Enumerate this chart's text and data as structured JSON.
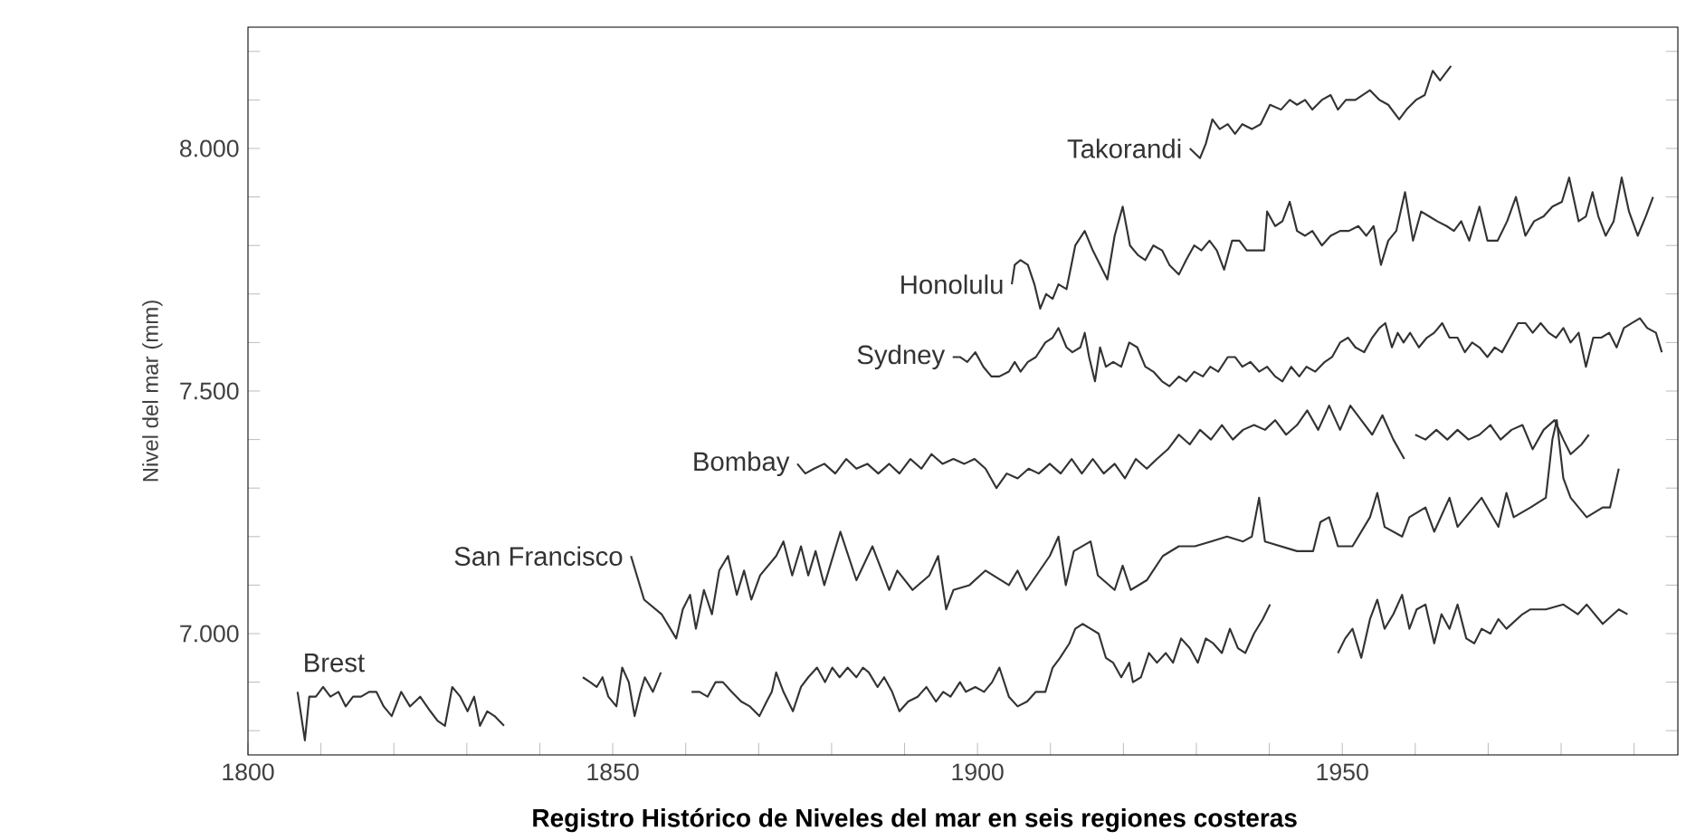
{
  "chart_data": {
    "type": "line",
    "title": "Registro Histórico de Niveles del mar en seis regiones costeras",
    "ylabel": "Nivel del mar (mm)",
    "xlim": [
      1800,
      1996
    ],
    "ylim": [
      6750,
      8250
    ],
    "xticks": [
      1800,
      {
        "value": 1810,
        "label": null
      },
      {
        "value": 1820,
        "label": null
      },
      {
        "value": 1830,
        "label": null
      },
      {
        "value": 1840,
        "label": null
      },
      1850,
      {
        "value": 1860,
        "label": null
      },
      {
        "value": 1870,
        "label": null
      },
      {
        "value": 1880,
        "label": null
      },
      {
        "value": 1890,
        "label": null
      },
      1900,
      {
        "value": 1910,
        "label": null
      },
      {
        "value": 1920,
        "label": null
      },
      {
        "value": 1930,
        "label": null
      },
      {
        "value": 1940,
        "label": null
      },
      1950,
      {
        "value": 1960,
        "label": null
      },
      {
        "value": 1970,
        "label": null
      },
      {
        "value": 1980,
        "label": null
      },
      {
        "value": 1990,
        "label": null
      }
    ],
    "yticks": [
      {
        "value": 6800,
        "label": null
      },
      {
        "value": 6900,
        "label": null
      },
      {
        "value": 7000,
        "label": "7.000"
      },
      {
        "value": 7100,
        "label": null
      },
      {
        "value": 7200,
        "label": null
      },
      {
        "value": 7300,
        "label": null
      },
      {
        "value": 7400,
        "label": null
      },
      {
        "value": 7500,
        "label": "7.500"
      },
      {
        "value": 7600,
        "label": null
      },
      {
        "value": 7700,
        "label": null
      },
      {
        "value": 7800,
        "label": null
      },
      {
        "value": 7900,
        "label": null
      },
      {
        "value": 8000,
        "label": "8.000"
      },
      {
        "value": 8100,
        "label": null
      },
      {
        "value": 8200,
        "label": null
      }
    ],
    "series": [
      {
        "name": "Takorandi",
        "color": "#333333",
        "x": [
          1929.1,
          1930.5,
          1931.3,
          1932.2,
          1933.2,
          1934.3,
          1935.3,
          1936.3,
          1937.6,
          1938.8,
          1940.1,
          1941.6,
          1942.8,
          1943.8,
          1944.9,
          1945.9,
          1947.2,
          1948.4,
          1949.4,
          1950.5,
          1951.8,
          1952.8,
          1953.8,
          1955.1,
          1956.3,
          1957.8,
          1958.8,
          1960.1,
          1961.3,
          1962.4,
          1963.4,
          1964.9
        ],
        "values": [
          8000,
          7980,
          8010,
          8060,
          8040,
          8050,
          8030,
          8050,
          8040,
          8050,
          8090,
          8080,
          8100,
          8090,
          8100,
          8080,
          8100,
          8110,
          8080,
          8100,
          8100,
          8110,
          8120,
          8100,
          8090,
          8060,
          8080,
          8100,
          8110,
          8160,
          8140,
          8170
        ]
      },
      {
        "name": "Honolulu",
        "color": "#333333",
        "x": [
          1904.7,
          1905.1,
          1905.9,
          1906.9,
          1907.8,
          1908.6,
          1909.4,
          1910.3,
          1911.1,
          1912.2,
          1913.4,
          1914.7,
          1915.8,
          1916.8,
          1917.8,
          1918.8,
          1919.9,
          1920.9,
          1922.0,
          1923.0,
          1924.1,
          1925.3,
          1926.3,
          1927.6,
          1928.6,
          1929.7,
          1930.7,
          1931.8,
          1932.8,
          1933.8,
          1934.9,
          1935.9,
          1936.9,
          1938.0,
          1939.3,
          1939.7,
          1940.8,
          1941.8,
          1942.8,
          1943.8,
          1944.9,
          1945.9,
          1947.2,
          1948.4,
          1949.7,
          1950.9,
          1952.2,
          1953.3,
          1954.3,
          1955.3,
          1956.3,
          1957.4,
          1958.6,
          1959.7,
          1960.8,
          1961.9,
          1963.0,
          1964.3,
          1965.3,
          1966.3,
          1967.4,
          1968.8,
          1969.9,
          1971.3,
          1972.6,
          1973.8,
          1975.1,
          1976.3,
          1977.6,
          1978.8,
          1980.1,
          1981.1,
          1982.4,
          1983.4,
          1984.3,
          1985.1,
          1986.1,
          1987.2,
          1988.3,
          1989.3,
          1990.5,
          1991.6,
          1992.6
        ],
        "values": [
          7720,
          7760,
          7770,
          7760,
          7720,
          7670,
          7700,
          7690,
          7720,
          7710,
          7800,
          7830,
          7790,
          7760,
          7730,
          7820,
          7880,
          7800,
          7780,
          7770,
          7800,
          7790,
          7760,
          7740,
          7770,
          7800,
          7790,
          7810,
          7790,
          7750,
          7810,
          7810,
          7790,
          7790,
          7790,
          7870,
          7840,
          7850,
          7890,
          7830,
          7820,
          7830,
          7800,
          7820,
          7830,
          7830,
          7840,
          7820,
          7840,
          7760,
          7810,
          7830,
          7910,
          7810,
          7870,
          7860,
          7850,
          7840,
          7830,
          7850,
          7810,
          7880,
          7810,
          7810,
          7850,
          7900,
          7820,
          7850,
          7860,
          7880,
          7890,
          7940,
          7850,
          7860,
          7910,
          7860,
          7820,
          7850,
          7940,
          7870,
          7820,
          7860,
          7900
        ]
      },
      {
        "name": "Sydney",
        "color": "#333333",
        "x": [
          1896.6,
          1897.6,
          1898.6,
          1899.7,
          1900.8,
          1901.9,
          1903.0,
          1904.3,
          1905.1,
          1905.9,
          1906.9,
          1908.0,
          1909.3,
          1910.3,
          1911.1,
          1912.2,
          1913.0,
          1914.1,
          1914.7,
          1915.3,
          1916.1,
          1916.8,
          1917.6,
          1918.6,
          1919.7,
          1920.8,
          1921.9,
          1923.0,
          1924.1,
          1925.3,
          1926.3,
          1927.6,
          1928.6,
          1929.7,
          1930.9,
          1931.9,
          1933.0,
          1934.3,
          1935.3,
          1936.3,
          1937.4,
          1938.6,
          1939.7,
          1940.8,
          1941.8,
          1943.0,
          1944.1,
          1945.1,
          1946.3,
          1947.6,
          1948.6,
          1949.7,
          1950.8,
          1951.8,
          1953.0,
          1954.1,
          1955.1,
          1955.9,
          1956.8,
          1957.6,
          1958.4,
          1959.3,
          1960.5,
          1961.6,
          1962.6,
          1963.7,
          1964.7,
          1965.8,
          1966.8,
          1967.8,
          1968.8,
          1969.9,
          1970.9,
          1971.9,
          1973.0,
          1974.1,
          1975.1,
          1976.1,
          1977.2,
          1978.3,
          1979.3,
          1980.3,
          1981.3,
          1982.4,
          1983.4,
          1984.4,
          1985.5,
          1986.6,
          1987.6,
          1988.6,
          1989.7,
          1990.8,
          1991.8,
          1993.0,
          1993.8
        ],
        "values": [
          7570,
          7570,
          7560,
          7580,
          7550,
          7530,
          7530,
          7540,
          7560,
          7540,
          7560,
          7570,
          7600,
          7610,
          7630,
          7590,
          7580,
          7590,
          7620,
          7570,
          7520,
          7590,
          7550,
          7560,
          7550,
          7600,
          7590,
          7550,
          7540,
          7520,
          7510,
          7530,
          7520,
          7540,
          7530,
          7550,
          7540,
          7570,
          7570,
          7550,
          7560,
          7540,
          7550,
          7530,
          7520,
          7550,
          7530,
          7550,
          7540,
          7560,
          7570,
          7600,
          7610,
          7590,
          7580,
          7610,
          7630,
          7640,
          7590,
          7620,
          7600,
          7620,
          7590,
          7610,
          7620,
          7640,
          7610,
          7610,
          7580,
          7600,
          7590,
          7570,
          7590,
          7580,
          7610,
          7640,
          7640,
          7620,
          7640,
          7620,
          7610,
          7630,
          7600,
          7620,
          7550,
          7610,
          7610,
          7620,
          7590,
          7630,
          7640,
          7650,
          7630,
          7620,
          7580
        ]
      },
      {
        "name": "Bombay",
        "color": "#333333",
        "x": [
          1875.3,
          1876.4,
          1877.6,
          1879.0,
          1880.5,
          1882.0,
          1883.4,
          1884.9,
          1886.4,
          1887.9,
          1889.3,
          1890.8,
          1892.3,
          1893.7,
          1895.2,
          1896.7,
          1898.2,
          1899.6,
          1901.1,
          1902.6,
          1904.0,
          1905.5,
          1907.0,
          1908.4,
          1909.9,
          1911.4,
          1912.9,
          1914.3,
          1915.8,
          1917.3,
          1918.8,
          1920.2,
          1921.7,
          1923.2,
          1924.6,
          1926.1,
          1927.6,
          1929.1,
          1930.5,
          1932.0,
          1933.5,
          1935.0,
          1936.4,
          1937.9,
          1939.4,
          1940.8,
          1942.3,
          1943.8,
          1945.2,
          1946.7,
          1948.2,
          1949.7,
          1951.1,
          1952.6,
          1954.1,
          1955.5,
          1957.0,
          1958.5,
          null,
          1960.0,
          1961.4,
          1962.9,
          1964.4,
          1965.8,
          1967.3,
          1968.8,
          1970.3,
          1971.7,
          1973.2,
          1974.7,
          1976.1,
          1977.6,
          1979.1,
          1980.3,
          1981.3,
          1982.8,
          1983.8
        ],
        "values": [
          7350,
          7330,
          7340,
          7350,
          7330,
          7360,
          7340,
          7350,
          7330,
          7350,
          7330,
          7360,
          7340,
          7370,
          7350,
          7360,
          7350,
          7360,
          7340,
          7300,
          7330,
          7320,
          7340,
          7330,
          7350,
          7330,
          7360,
          7330,
          7360,
          7330,
          7350,
          7320,
          7360,
          7340,
          7360,
          7380,
          7410,
          7390,
          7420,
          7400,
          7430,
          7400,
          7420,
          7430,
          7420,
          7440,
          7410,
          7430,
          7460,
          7420,
          7470,
          7420,
          7470,
          7440,
          7410,
          7450,
          7400,
          7360,
          null,
          7410,
          7400,
          7420,
          7400,
          7420,
          7400,
          7410,
          7430,
          7400,
          7420,
          7430,
          7380,
          7420,
          7440,
          7400,
          7370,
          7390,
          7410
        ]
      },
      {
        "name": "San Francisco",
        "color": "#333333",
        "x": [
          1852.5,
          1854.3,
          1856.7,
          1858.7,
          1859.6,
          1860.6,
          1861.4,
          1862.5,
          1863.6,
          1864.6,
          1865.8,
          1867.0,
          1868.0,
          1869.0,
          1870.2,
          1872.4,
          1873.4,
          1874.6,
          1875.8,
          1876.8,
          1877.8,
          1879.0,
          1881.2,
          1883.4,
          1885.6,
          1887.9,
          1889.0,
          1891.1,
          1893.4,
          1894.6,
          1895.7,
          1896.7,
          1898.9,
          1901.1,
          1904.3,
          1905.5,
          1906.7,
          1909.9,
          1911.1,
          1912.1,
          1913.2,
          1915.5,
          1916.5,
          1918.8,
          1919.9,
          1921.0,
          1923.2,
          1925.4,
          1927.6,
          1929.8,
          1932.0,
          1934.2,
          1936.4,
          1937.6,
          1938.6,
          1939.4,
          1941.6,
          1943.8,
          1946.0,
          1947.0,
          1948.2,
          1949.4,
          1951.4,
          1953.8,
          1954.8,
          1955.8,
          1958.2,
          1959.2,
          1961.4,
          1962.6,
          1964.7,
          1965.8,
          1969.1,
          1971.4,
          1972.5,
          1973.5,
          1975.8,
          1977.9,
          1978.8,
          1979.4,
          1980.3,
          1981.3,
          1983.5,
          1985.7,
          1986.7,
          1987.9
        ],
        "values": [
          7160,
          7070,
          7040,
          6990,
          7050,
          7080,
          7010,
          7090,
          7040,
          7130,
          7160,
          7080,
          7130,
          7070,
          7120,
          7160,
          7190,
          7120,
          7180,
          7120,
          7170,
          7100,
          7210,
          7110,
          7180,
          7090,
          7130,
          7090,
          7120,
          7160,
          7050,
          7090,
          7100,
          7130,
          7100,
          7130,
          7090,
          7160,
          7200,
          7100,
          7170,
          7190,
          7120,
          7090,
          7140,
          7090,
          7110,
          7160,
          7180,
          7180,
          7190,
          7200,
          7190,
          7200,
          7280,
          7190,
          7180,
          7170,
          7170,
          7230,
          7240,
          7180,
          7180,
          7240,
          7290,
          7220,
          7200,
          7240,
          7260,
          7210,
          7280,
          7220,
          7280,
          7220,
          7290,
          7240,
          7260,
          7280,
          7400,
          7440,
          7320,
          7280,
          7240,
          7260,
          7260,
          7340
        ]
      },
      {
        "name": "Brest",
        "color": "#333333",
        "x": [
          1806.8,
          1807.8,
          1808.4,
          1809.3,
          1810.3,
          1811.3,
          1812.4,
          1813.4,
          1814.4,
          1815.5,
          1816.6,
          1817.6,
          1818.6,
          1819.7,
          1821.0,
          1822.2,
          1823.6,
          1825.0,
          1826.0,
          1827.0,
          1828.0,
          1829.1,
          1830.1,
          1831.0,
          1831.8,
          1832.8,
          1833.8,
          1835.1,
          null,
          1845.9,
          1846.9,
          1847.8,
          1848.6,
          1849.4,
          1850.5,
          1851.3,
          1852.2,
          1853.0,
          1853.8,
          1854.4,
          1855.5,
          1856.6,
          null,
          1860.8,
          1861.9,
          1863.0,
          1864.1,
          1865.1,
          1866.3,
          1867.6,
          1868.8,
          1870.1,
          1871.1,
          1871.8,
          1872.4,
          1873.4,
          1874.7,
          1875.8,
          1876.8,
          1878.0,
          1879.1,
          1880.1,
          1881.1,
          1882.2,
          1883.4,
          1884.3,
          1885.1,
          1886.3,
          1887.2,
          1888.3,
          1889.3,
          1890.5,
          1891.8,
          1893.0,
          1894.3,
          1895.3,
          1896.3,
          1897.6,
          1898.4,
          1899.7,
          1900.9,
          1902.0,
          1903.0,
          1904.3,
          1905.5,
          1906.8,
          1908.0,
          1909.3,
          1910.3,
          1911.3,
          1912.6,
          1913.4,
          1914.4,
          1915.5,
          1916.6,
          1917.6,
          1918.6,
          1919.7,
          1920.8,
          1921.3,
          1922.4,
          1923.5,
          1924.6,
          1925.8,
          1926.8,
          1927.9,
          1929.1,
          1930.2,
          1931.3,
          1932.3,
          1933.5,
          1934.6,
          1935.7,
          1936.7,
          1937.9,
          1939.1,
          1940.1,
          null,
          1949.4,
          1950.4,
          1951.4,
          1952.6,
          1953.8,
          1954.8,
          1955.8,
          1957.0,
          1958.2,
          1959.2,
          1960.2,
          1961.4,
          1962.6,
          1963.6,
          1964.7,
          1965.8,
          1967.0,
          1968.1,
          1969.1,
          1970.3,
          1971.4,
          1972.5,
          1974.7,
          1975.8,
          1977.9,
          1980.3,
          1982.3,
          1983.5,
          1985.7,
          1987.9,
          1989.1
        ],
        "values": [
          6880,
          6780,
          6870,
          6870,
          6890,
          6870,
          6880,
          6850,
          6870,
          6870,
          6880,
          6880,
          6850,
          6830,
          6880,
          6850,
          6870,
          6840,
          6820,
          6810,
          6890,
          6870,
          6840,
          6870,
          6810,
          6840,
          6830,
          6810,
          null,
          6910,
          6900,
          6890,
          6910,
          6870,
          6850,
          6930,
          6900,
          6830,
          6880,
          6910,
          6880,
          6920,
          null,
          6880,
          6880,
          6870,
          6900,
          6900,
          6880,
          6860,
          6850,
          6830,
          6860,
          6880,
          6920,
          6880,
          6840,
          6890,
          6910,
          6930,
          6900,
          6930,
          6910,
          6930,
          6910,
          6930,
          6920,
          6890,
          6910,
          6880,
          6840,
          6860,
          6870,
          6890,
          6860,
          6880,
          6870,
          6900,
          6880,
          6890,
          6880,
          6900,
          6930,
          6870,
          6850,
          6860,
          6880,
          6880,
          6930,
          6950,
          6980,
          7010,
          7020,
          7010,
          7000,
          6950,
          6940,
          6910,
          6940,
          6900,
          6910,
          6960,
          6940,
          6960,
          6940,
          6990,
          6970,
          6940,
          6990,
          6980,
          6960,
          7010,
          6970,
          6960,
          7000,
          7030,
          7060,
          null,
          6960,
          6990,
          7010,
          6950,
          7030,
          7070,
          7010,
          7040,
          7080,
          7010,
          7050,
          7060,
          6980,
          7040,
          7010,
          7060,
          6990,
          6980,
          7010,
          7000,
          7030,
          7010,
          7040,
          7050,
          7050,
          7060,
          7040,
          7060,
          7020,
          7050,
          7040
        ]
      }
    ]
  }
}
